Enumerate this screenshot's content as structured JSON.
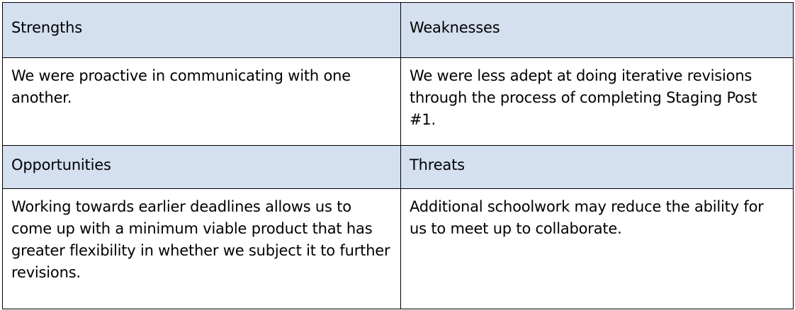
{
  "swot": {
    "strengths": {
      "heading": "Strengths",
      "text": "We were proactive in communicating with one another."
    },
    "weaknesses": {
      "heading": "Weaknesses",
      "text": "We were less adept at doing iterative revisions through the process of completing Staging Post #1."
    },
    "opportunities": {
      "heading": "Opportunities",
      "text": "Working towards earlier deadlines allows us to come up with a minimum viable product that has greater flexibility in whether we subject it to further revisions."
    },
    "threats": {
      "heading": "Threats",
      "text": "Additional schoolwork may reduce the ability for us to meet up to collaborate."
    }
  },
  "colors": {
    "header_background": "#d4dff0",
    "border": "#000000",
    "text": "#000000"
  }
}
